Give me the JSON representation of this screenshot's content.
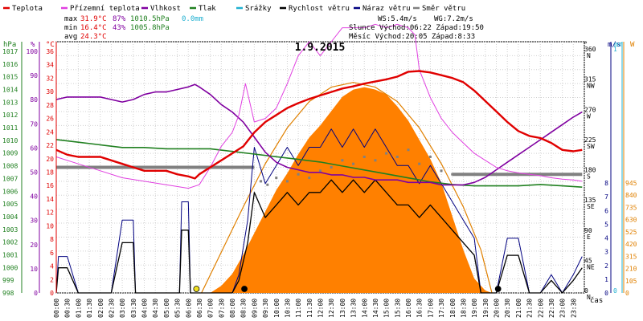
{
  "chart_data": {
    "type": "line",
    "title": "1.9.2015",
    "xlabel": "čas",
    "x_ticks": [
      "00:00",
      "00:30",
      "01:00",
      "01:30",
      "02:00",
      "02:30",
      "03:00",
      "03:30",
      "04:00",
      "04:30",
      "05:00",
      "05:30",
      "06:00",
      "06:30",
      "07:00",
      "07:30",
      "08:00",
      "08:30",
      "09:00",
      "09:30",
      "10:00",
      "10:30",
      "11:00",
      "11:30",
      "12:00",
      "12:30",
      "13:00",
      "13:30",
      "14:00",
      "14:30",
      "15:00",
      "15:30",
      "16:00",
      "16:30",
      "17:00",
      "17:30",
      "18:00",
      "18:30",
      "19:00",
      "19:30",
      "20:00",
      "20:30",
      "21:00",
      "21:30",
      "22:00",
      "22:30",
      "23:00",
      "23:30"
    ],
    "legend": [
      {
        "name": "Teplota",
        "color": "#e00000"
      },
      {
        "name": "Přízemní teplota",
        "color": "#e040e0"
      },
      {
        "name": "Vlhkost",
        "color": "#8000a0"
      },
      {
        "name": "Tlak",
        "color": "#208020"
      },
      {
        "name": "Srážky",
        "color": "#20b0d0"
      },
      {
        "name": "Rychlost větru",
        "color": "#000000"
      },
      {
        "name": "Náraz větru",
        "color": "#000080"
      },
      {
        "name": "Směr větru",
        "color": "#808080"
      }
    ],
    "stats": {
      "max_label": "max",
      "min_label": "min",
      "avg_label": "avg",
      "max_temp": "31.9°C",
      "max_hum": "87%",
      "max_press": "1010.5hPa",
      "rain": "0.0mm",
      "min_temp": "16.4°C",
      "min_hum": "43%",
      "min_press": "1005.8hPa",
      "avg_temp": "24.3°C"
    },
    "info": {
      "ws": "WS:5.4m/s",
      "wg": "WG:7.2m/s",
      "sun": "Slunce Východ:06:22 Západ:19:50",
      "moon": "Měsíc Východ:20:05 Západ:8:33"
    },
    "axes": {
      "hpa_label": "hPa",
      "pct_label": "%",
      "c_label": "°C",
      "dir_label": "°",
      "ms_label": "m/s",
      "mm_label": "mm",
      "w_label": "W",
      "hpa_ticks": [
        "1017",
        "1016",
        "1015",
        "1014",
        "1013",
        "1012",
        "1011",
        "1010",
        "1009",
        "1008",
        "1007",
        "1006",
        "1005",
        "1004",
        "1003",
        "1002",
        "1001",
        "1000",
        "999",
        "998"
      ],
      "pct_ticks": [
        "100",
        "90",
        "80",
        "70",
        "60",
        "50",
        "40",
        "30",
        "20",
        "10",
        "0"
      ],
      "c_ticks": [
        "36",
        "34",
        "32",
        "30",
        "28",
        "26",
        "24",
        "22",
        "20",
        "18",
        "16",
        "14",
        "12",
        "10",
        "8",
        "6",
        "4",
        "2",
        "0"
      ],
      "dir_ticks": [
        {
          "deg": "360",
          "dir": "N"
        },
        {
          "deg": "315",
          "dir": "NW"
        },
        {
          "deg": "270",
          "dir": "W"
        },
        {
          "deg": "225",
          "dir": "SW"
        },
        {
          "deg": "180",
          "dir": "S"
        },
        {
          "deg": "135",
          "dir": "SE"
        },
        {
          "deg": "90",
          "dir": "E"
        },
        {
          "deg": "45",
          "dir": "NE"
        },
        {
          "deg": "0",
          "dir": "N"
        }
      ],
      "ms_ticks": [
        "8",
        "7",
        "6",
        "5",
        "4",
        "3",
        "2",
        "1",
        "0"
      ],
      "mm_ticks": [
        "1",
        "0"
      ],
      "w_ticks": [
        "945",
        "840",
        "735",
        "630",
        "525",
        "420",
        "315",
        "210",
        "105",
        "0"
      ]
    },
    "ylim_temp": [
      0,
      36
    ],
    "ylim_pressure": [
      998,
      1017
    ],
    "ylim_humidity": [
      0,
      100
    ],
    "ylim_wind": [
      0,
      10
    ],
    "ylim_solar": [
      0,
      1050
    ],
    "temperature": [
      [
        0,
        20.5
      ],
      [
        0.5,
        19.8
      ],
      [
        1,
        19.5
      ],
      [
        1.5,
        19.5
      ],
      [
        2,
        19.5
      ],
      [
        2.5,
        19.0
      ],
      [
        3,
        18.5
      ],
      [
        3.5,
        18.0
      ],
      [
        4,
        17.5
      ],
      [
        4.5,
        17.5
      ],
      [
        5,
        17.5
      ],
      [
        5.5,
        17.0
      ],
      [
        6,
        16.7
      ],
      [
        6.3,
        16.4
      ],
      [
        6.5,
        17.0
      ],
      [
        7,
        18.0
      ],
      [
        7.5,
        19.0
      ],
      [
        8,
        20.0
      ],
      [
        8.5,
        21.0
      ],
      [
        9,
        23.0
      ],
      [
        9.5,
        24.5
      ],
      [
        10,
        25.5
      ],
      [
        10.5,
        26.5
      ],
      [
        11,
        27.2
      ],
      [
        11.5,
        27.8
      ],
      [
        12,
        28.3
      ],
      [
        12.5,
        28.8
      ],
      [
        13,
        29.3
      ],
      [
        13.5,
        29.6
      ],
      [
        14,
        30.0
      ],
      [
        14.5,
        30.3
      ],
      [
        15,
        30.6
      ],
      [
        15.5,
        31.0
      ],
      [
        16,
        31.7
      ],
      [
        16.5,
        31.8
      ],
      [
        17,
        31.6
      ],
      [
        17.5,
        31.2
      ],
      [
        18,
        30.8
      ],
      [
        18.5,
        30.2
      ],
      [
        19,
        29.0
      ],
      [
        19.5,
        27.5
      ],
      [
        20,
        26.0
      ],
      [
        20.5,
        24.5
      ],
      [
        21,
        23.2
      ],
      [
        21.5,
        22.5
      ],
      [
        22,
        22.2
      ],
      [
        22.5,
        21.5
      ],
      [
        23,
        20.5
      ],
      [
        23.5,
        20.3
      ],
      [
        23.9,
        20.5
      ]
    ],
    "ground_temperature": [
      [
        0,
        19.5
      ],
      [
        1,
        18.5
      ],
      [
        2,
        17.5
      ],
      [
        3,
        16.5
      ],
      [
        4,
        16.0
      ],
      [
        5,
        15.5
      ],
      [
        6,
        15.0
      ],
      [
        6.5,
        15.5
      ],
      [
        7,
        18.0
      ],
      [
        7.5,
        21.0
      ],
      [
        8,
        23.0
      ],
      [
        8.3,
        25.5
      ],
      [
        8.6,
        30.0
      ],
      [
        9,
        24.5
      ],
      [
        9.5,
        25.0
      ],
      [
        10,
        26.5
      ],
      [
        10.5,
        30.0
      ],
      [
        11,
        34.0
      ],
      [
        11.5,
        36.0
      ],
      [
        12,
        34.0
      ],
      [
        12.5,
        36.0
      ],
      [
        13,
        38.0
      ],
      [
        13.5,
        38.0
      ],
      [
        14,
        38.0
      ],
      [
        14.5,
        38.5
      ],
      [
        15,
        38.0
      ],
      [
        15.5,
        38.5
      ],
      [
        16,
        38.0
      ],
      [
        16.3,
        37.0
      ],
      [
        16.5,
        32.0
      ],
      [
        17,
        28.0
      ],
      [
        17.5,
        25.0
      ],
      [
        18,
        23.0
      ],
      [
        18.5,
        21.5
      ],
      [
        19,
        20.0
      ],
      [
        19.5,
        19.0
      ],
      [
        20,
        18.0
      ],
      [
        20.5,
        17.5
      ],
      [
        21,
        17.2
      ],
      [
        21.5,
        17.0
      ],
      [
        22,
        16.8
      ],
      [
        22.5,
        16.5
      ],
      [
        23,
        16.3
      ],
      [
        23.5,
        16.2
      ],
      [
        23.9,
        16.0
      ]
    ],
    "humidity": [
      [
        0,
        77
      ],
      [
        0.5,
        78
      ],
      [
        1,
        78
      ],
      [
        1.5,
        78
      ],
      [
        2,
        78
      ],
      [
        2.5,
        77
      ],
      [
        3,
        76
      ],
      [
        3.5,
        77
      ],
      [
        4,
        79
      ],
      [
        4.5,
        80
      ],
      [
        5,
        80
      ],
      [
        5.5,
        81
      ],
      [
        6,
        82
      ],
      [
        6.3,
        83
      ],
      [
        6.5,
        82
      ],
      [
        7,
        79
      ],
      [
        7.5,
        75
      ],
      [
        8,
        72
      ],
      [
        8.5,
        68
      ],
      [
        9,
        62
      ],
      [
        9.5,
        56
      ],
      [
        10,
        52
      ],
      [
        10.5,
        50
      ],
      [
        11,
        49
      ],
      [
        11.5,
        48
      ],
      [
        12,
        48
      ],
      [
        12.5,
        47
      ],
      [
        13,
        47
      ],
      [
        13.5,
        46
      ],
      [
        14,
        46
      ],
      [
        14.5,
        45
      ],
      [
        15,
        45
      ],
      [
        15.5,
        45
      ],
      [
        16,
        44
      ],
      [
        16.5,
        44
      ],
      [
        17,
        44
      ],
      [
        17.5,
        43
      ],
      [
        18,
        43
      ],
      [
        18.5,
        43
      ],
      [
        19,
        44
      ],
      [
        19.5,
        46
      ],
      [
        20,
        49
      ],
      [
        20.5,
        52
      ],
      [
        21,
        55
      ],
      [
        21.5,
        58
      ],
      [
        22,
        61
      ],
      [
        22.5,
        64
      ],
      [
        23,
        67
      ],
      [
        23.5,
        70
      ],
      [
        23.9,
        72
      ]
    ],
    "pressure": [
      [
        0,
        1009.6
      ],
      [
        1,
        1009.4
      ],
      [
        2,
        1009.2
      ],
      [
        3,
        1009.0
      ],
      [
        4,
        1009.0
      ],
      [
        5,
        1008.9
      ],
      [
        6,
        1008.9
      ],
      [
        7,
        1008.9
      ],
      [
        8,
        1008.7
      ],
      [
        9,
        1008.5
      ],
      [
        10,
        1008.3
      ],
      [
        11,
        1008.1
      ],
      [
        12,
        1007.9
      ],
      [
        13,
        1007.6
      ],
      [
        14,
        1007.3
      ],
      [
        15,
        1007.0
      ],
      [
        16,
        1006.7
      ],
      [
        17,
        1006.4
      ],
      [
        18,
        1006.2
      ],
      [
        19,
        1006.1
      ],
      [
        20,
        1006.1
      ],
      [
        21,
        1006.1
      ],
      [
        22,
        1006.2
      ],
      [
        23,
        1006.1
      ],
      [
        23.9,
        1006.0
      ]
    ],
    "wind_speed_baseline": [
      [
        0,
        0.0
      ],
      [
        0.1,
        1.0
      ],
      [
        0.5,
        1.0
      ],
      [
        1,
        0
      ],
      [
        2,
        0
      ],
      [
        2.5,
        0
      ],
      [
        3,
        2.0
      ],
      [
        3.5,
        2.0
      ],
      [
        3.6,
        0
      ],
      [
        5,
        0
      ],
      [
        5.6,
        0
      ],
      [
        5.7,
        2.5
      ],
      [
        6,
        2.5
      ],
      [
        6.1,
        0
      ],
      [
        7,
        0
      ],
      [
        8,
        0
      ],
      [
        8.3,
        0.5
      ],
      [
        8.7,
        2.0
      ],
      [
        9,
        4.0
      ],
      [
        9.5,
        3.0
      ],
      [
        10,
        3.5
      ],
      [
        10.5,
        4.0
      ],
      [
        11,
        3.5
      ],
      [
        11.5,
        4.0
      ],
      [
        12,
        4.0
      ],
      [
        12.5,
        4.5
      ],
      [
        13,
        4.0
      ],
      [
        13.5,
        4.5
      ],
      [
        14,
        4.0
      ],
      [
        14.5,
        4.5
      ],
      [
        15,
        4.0
      ],
      [
        15.5,
        3.5
      ],
      [
        16,
        3.5
      ],
      [
        16.5,
        3.0
      ],
      [
        17,
        3.5
      ],
      [
        17.5,
        3.0
      ],
      [
        18,
        2.5
      ],
      [
        18.5,
        2.0
      ],
      [
        19,
        1.5
      ],
      [
        19.3,
        0
      ],
      [
        20,
        0
      ],
      [
        20.5,
        1.5
      ],
      [
        21,
        1.5
      ],
      [
        21.5,
        0
      ],
      [
        22,
        0
      ],
      [
        22.5,
        0.5
      ],
      [
        23,
        0
      ],
      [
        23.5,
        0.5
      ],
      [
        23.9,
        1.0
      ]
    ],
    "wind_direction_level": [
      [
        0,
        180
      ],
      [
        9,
        180
      ]
    ],
    "wind_direction_level_evening": [
      [
        18,
        170
      ],
      [
        23.9,
        170
      ]
    ],
    "wind_direction_points": [
      [
        9.3,
        160
      ],
      [
        9.6,
        155
      ],
      [
        10,
        165
      ],
      [
        10.5,
        160
      ],
      [
        11,
        170
      ],
      [
        11.5,
        165
      ],
      [
        12,
        175
      ],
      [
        12.5,
        180
      ],
      [
        13,
        190
      ],
      [
        13.5,
        185
      ],
      [
        14,
        195
      ],
      [
        14.5,
        190
      ],
      [
        15,
        200
      ],
      [
        15.5,
        195
      ],
      [
        16,
        205
      ],
      [
        16.5,
        185
      ],
      [
        17,
        195
      ],
      [
        17.5,
        175
      ],
      [
        18,
        170
      ]
    ],
    "solar": [
      [
        7,
        0
      ],
      [
        7.5,
        30
      ],
      [
        8,
        80
      ],
      [
        8.5,
        160
      ],
      [
        9,
        250
      ],
      [
        9.5,
        340
      ],
      [
        10,
        430
      ],
      [
        10.5,
        500
      ],
      [
        11,
        580
      ],
      [
        11.5,
        650
      ],
      [
        12,
        700
      ],
      [
        12.5,
        760
      ],
      [
        13,
        820
      ],
      [
        13.5,
        850
      ],
      [
        14,
        860
      ],
      [
        14.5,
        850
      ],
      [
        15,
        830
      ],
      [
        15.5,
        780
      ],
      [
        16,
        720
      ],
      [
        16.5,
        640
      ],
      [
        17,
        560
      ],
      [
        17.5,
        460
      ],
      [
        18,
        320
      ],
      [
        18.5,
        180
      ],
      [
        19,
        60
      ],
      [
        19.5,
        10
      ],
      [
        19.8,
        0
      ]
    ],
    "solar_theoretical": [
      [
        6.6,
        0
      ],
      [
        7.5,
        170
      ],
      [
        8.5,
        360
      ],
      [
        9.5,
        540
      ],
      [
        10.5,
        690
      ],
      [
        11.5,
        800
      ],
      [
        12.5,
        860
      ],
      [
        13.5,
        880
      ],
      [
        14.5,
        860
      ],
      [
        15.5,
        800
      ],
      [
        16.5,
        690
      ],
      [
        17.5,
        540
      ],
      [
        18.5,
        360
      ],
      [
        19.3,
        180
      ],
      [
        19.8,
        0
      ]
    ],
    "sun_markers": [
      {
        "time": 6.37,
        "color": "#f0e020"
      },
      {
        "time": 8.55,
        "color": "#000000"
      },
      {
        "time": 20.08,
        "color": "#000000"
      }
    ]
  }
}
